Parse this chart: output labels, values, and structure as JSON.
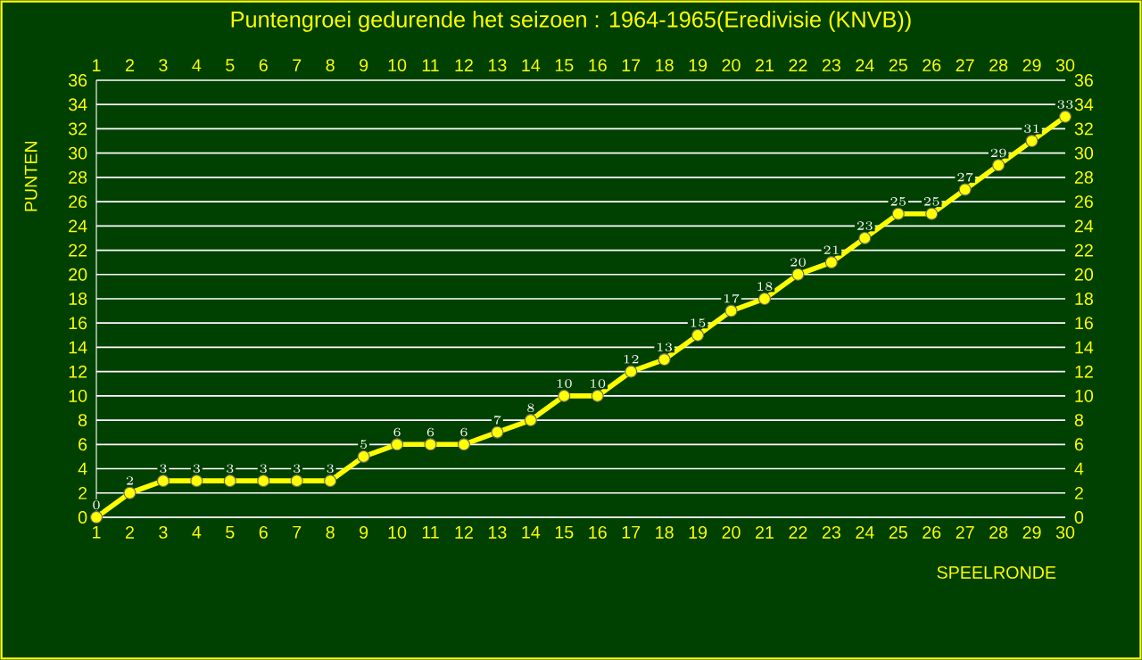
{
  "chart_data": {
    "type": "line",
    "title": "Puntengroei gedurende het seizoen : 1964-1965(Eredivisie (KNVB))",
    "xlabel": "SPEELRONDE",
    "ylabel": "PUNTEN",
    "x": [
      1,
      2,
      3,
      4,
      5,
      6,
      7,
      8,
      9,
      10,
      11,
      12,
      13,
      14,
      15,
      16,
      17,
      18,
      19,
      20,
      21,
      22,
      23,
      24,
      25,
      26,
      27,
      28,
      29,
      30
    ],
    "series": [
      {
        "color": "#ffff00",
        "values": [
          0,
          2,
          3,
          3,
          3,
          3,
          3,
          3,
          5,
          6,
          6,
          6,
          7,
          8,
          10,
          10,
          12,
          13,
          15,
          17,
          18,
          20,
          21,
          23,
          25,
          25,
          27,
          29,
          31,
          33
        ]
      }
    ],
    "xlim": [
      1,
      30
    ],
    "xticks": [
      1,
      2,
      3,
      4,
      5,
      6,
      7,
      8,
      9,
      10,
      11,
      12,
      13,
      14,
      15,
      16,
      17,
      18,
      19,
      20,
      21,
      22,
      23,
      24,
      25,
      26,
      27,
      28,
      29,
      30
    ],
    "x2lim": [
      1,
      30
    ],
    "x2ticks": [
      1,
      2,
      3,
      4,
      5,
      6,
      7,
      8,
      9,
      10,
      11,
      12,
      13,
      14,
      15,
      16,
      17,
      18,
      19,
      20,
      21,
      22,
      23,
      24,
      25,
      26,
      27,
      28,
      29,
      30
    ],
    "ylim": [
      0,
      36
    ],
    "yticks": [
      0,
      2,
      4,
      6,
      8,
      10,
      12,
      14,
      16,
      18,
      20,
      22,
      24,
      26,
      28,
      30,
      32,
      34,
      36
    ],
    "y2lim": [
      0,
      36
    ],
    "y2ticks": [
      0,
      2,
      4,
      6,
      8,
      10,
      12,
      14,
      16,
      18,
      20,
      22,
      24,
      26,
      28,
      30,
      32,
      34,
      36
    ],
    "grid": "y",
    "marker": "circle",
    "line_style": "solid",
    "data_labels": true
  }
}
